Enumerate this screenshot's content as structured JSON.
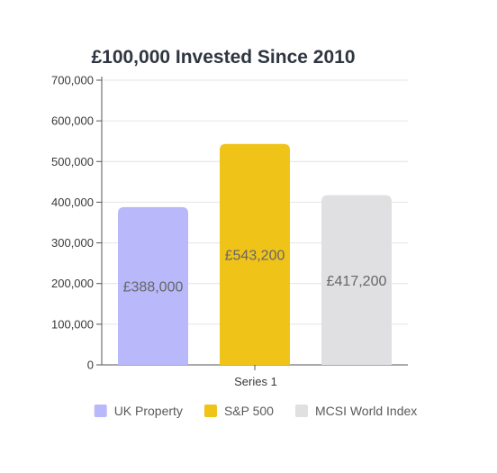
{
  "chart_data": {
    "type": "bar",
    "title": "£100,000 Invested Since 2010",
    "categories": [
      "Series 1"
    ],
    "series": [
      {
        "name": "UK Property",
        "values": [
          388000
        ],
        "color": "#b8b8fb",
        "label": "£388,000"
      },
      {
        "name": "S&P 500",
        "values": [
          543200
        ],
        "color": "#f0c319",
        "label": "£543,200"
      },
      {
        "name": "MCSI World Index",
        "values": [
          417200
        ],
        "color": "#e0e0e3",
        "label": "£417,200"
      }
    ],
    "ylim": [
      0,
      700000
    ],
    "yticks": [
      0,
      100000,
      200000,
      300000,
      400000,
      500000,
      600000,
      700000
    ],
    "ytick_labels": [
      "0",
      "100,000",
      "200,000",
      "300,000",
      "400,000",
      "500,000",
      "600,000",
      "700,000"
    ],
    "grid": true,
    "legend_position": "bottom"
  }
}
